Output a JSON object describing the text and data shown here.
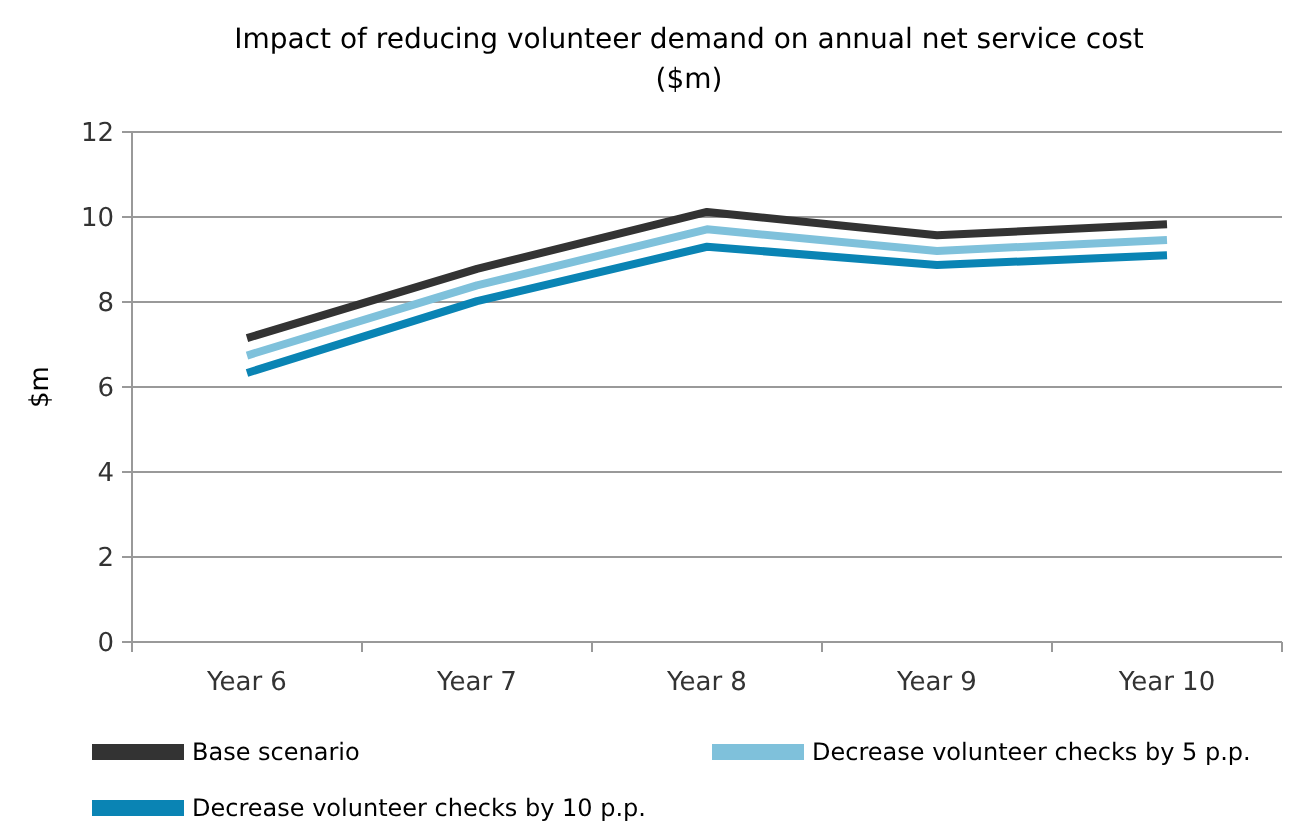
{
  "chart_data": {
    "type": "line",
    "title": "Impact of reducing volunteer demand on annual net service cost ($m)",
    "ylabel": "$m",
    "categories": [
      "Year 6",
      "Year 7",
      "Year 8",
      "Year 9",
      "Year 10"
    ],
    "ylim": [
      0,
      12
    ],
    "yticks": [
      0,
      2,
      4,
      6,
      8,
      10,
      12
    ],
    "grid": "y",
    "legend": "bottom",
    "marker": "none",
    "line_style": "solid",
    "series": [
      {
        "name": "Base scenario",
        "color": "#333333",
        "values": [
          7.15,
          8.78,
          10.12,
          9.57,
          9.83
        ]
      },
      {
        "name": "Decrease volunteer checks by 5 p.p.",
        "color": "#7fc1db",
        "values": [
          6.74,
          8.39,
          9.71,
          9.2,
          9.46
        ]
      },
      {
        "name": "Decrease volunteer checks by 10 p.p.",
        "color": "#0a84b4",
        "values": [
          6.33,
          8.02,
          9.3,
          8.87,
          9.1
        ]
      }
    ]
  }
}
